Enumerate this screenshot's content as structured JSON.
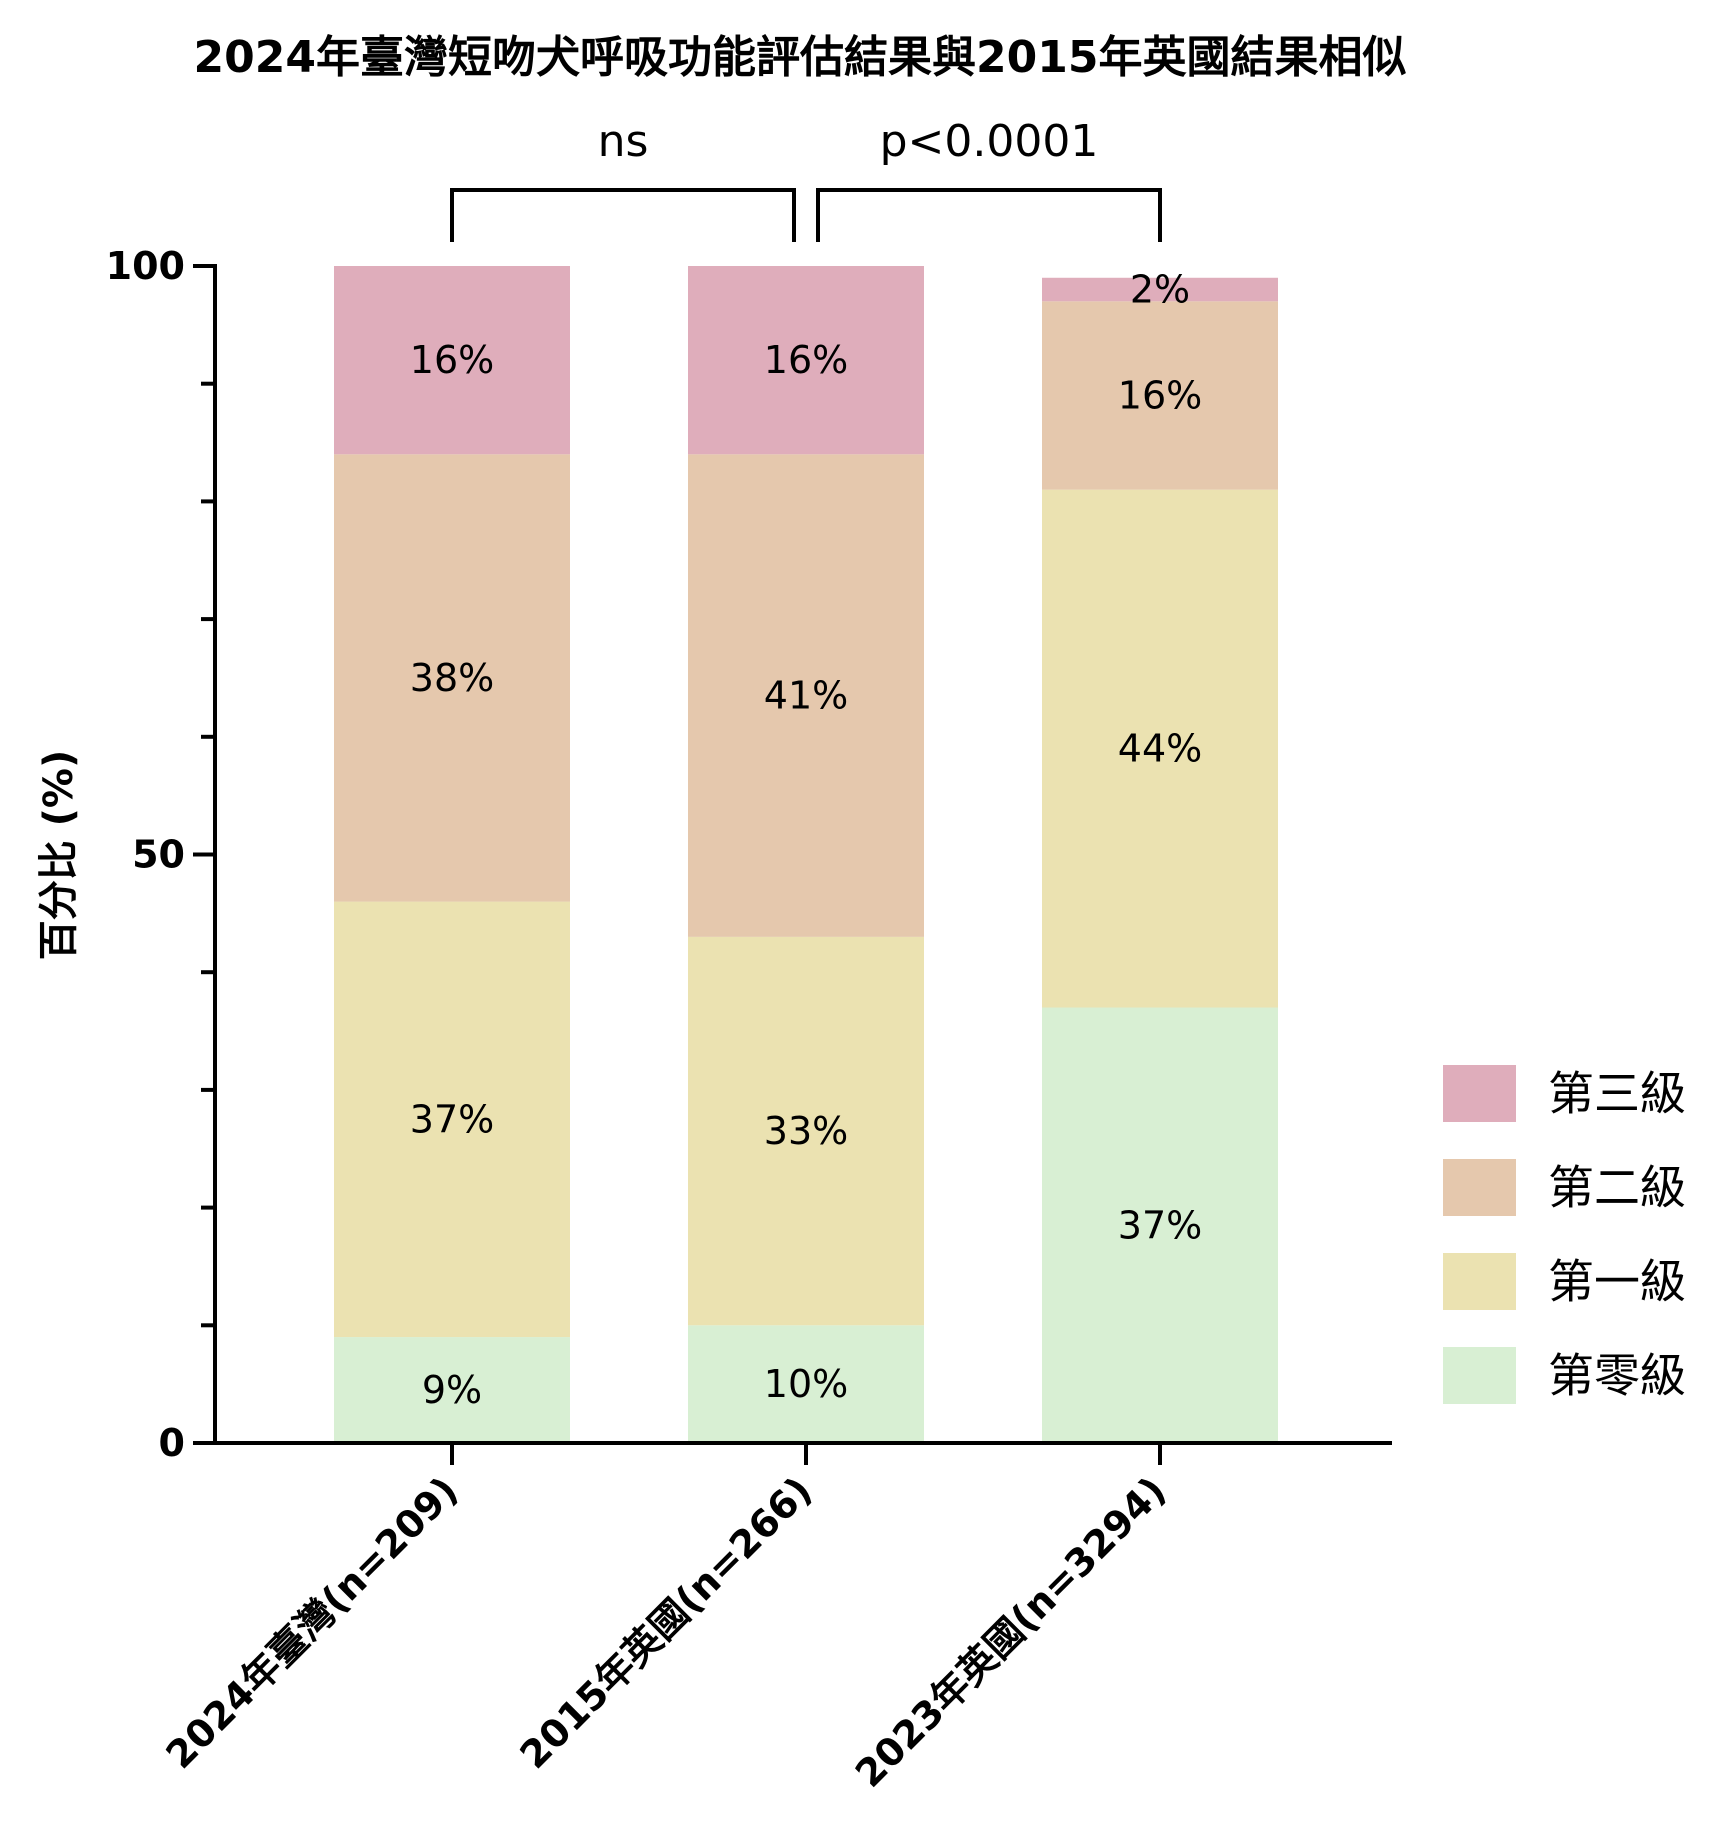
{
  "chart_data": {
    "type": "bar",
    "stacked": true,
    "title": "2024年臺灣短吻犬呼吸功能評估結果與2015年英國結果相似",
    "ylabel": "百分比 (%)",
    "xlabel": "",
    "ylim": [
      0,
      100
    ],
    "yticks": [
      0,
      50,
      100
    ],
    "categories": [
      "2024年臺灣(n=209)",
      "2015年英國(n=266)",
      "2023年英國(n=3294)"
    ],
    "series": [
      {
        "name": "第零級",
        "color": "#d8efd3",
        "values": [
          9,
          10,
          37
        ]
      },
      {
        "name": "第一級",
        "color": "#ebe2b1",
        "values": [
          37,
          33,
          44
        ]
      },
      {
        "name": "第二級",
        "color": "#e5c8ad",
        "values": [
          38,
          41,
          16
        ]
      },
      {
        "name": "第三級",
        "color": "#dfadbb",
        "values": [
          16,
          16,
          2
        ]
      }
    ],
    "value_labels": [
      [
        "9%",
        "10%",
        "37%"
      ],
      [
        "37%",
        "33%",
        "44%"
      ],
      [
        "38%",
        "41%",
        "16%"
      ],
      [
        "16%",
        "16%",
        "2%"
      ]
    ],
    "significance": [
      {
        "from": 0,
        "to": 1,
        "label": "ns"
      },
      {
        "from": 1,
        "to": 2,
        "label": "p<0.0001"
      }
    ],
    "legend": {
      "position": "right",
      "order": [
        "第三級",
        "第二級",
        "第一級",
        "第零級"
      ]
    },
    "grid": false
  }
}
